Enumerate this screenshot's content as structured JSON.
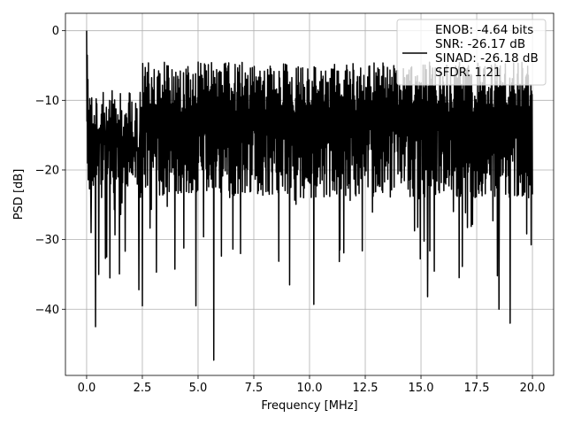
{
  "chart_data": {
    "type": "line",
    "title": "",
    "xlabel": "Frequency [MHz]",
    "ylabel": "PSD [dB]",
    "xlim": [
      -0.95,
      20.95
    ],
    "ylim": [
      -49.5,
      2.5
    ],
    "xticks": [
      0.0,
      2.5,
      5.0,
      7.5,
      10.0,
      12.5,
      15.0,
      17.5,
      20.0
    ],
    "xtick_labels": [
      "0.0",
      "2.5",
      "5.0",
      "7.5",
      "10.0",
      "12.5",
      "15.0",
      "17.5",
      "20.0"
    ],
    "yticks": [
      0,
      -10,
      -20,
      -30,
      -40
    ],
    "ytick_labels": [
      "0",
      "−10",
      "−20",
      "−30",
      "−40"
    ],
    "grid": true,
    "legend_position": "top-right",
    "line_color": "#000000",
    "grid_color": "#b0b0b0",
    "legend": [
      "ENOB: -4.64 bits",
      "SNR: -26.17 dB",
      "SINAD: -26.18 dB",
      "SFDR: 1.21"
    ],
    "series": [
      {
        "x_start": 0.0,
        "x_end": 20.0,
        "num_points": 1400,
        "peak": {
          "x": 0.0,
          "y": 0.0
        },
        "typical_range": [
          -24,
          -5
        ],
        "notable_points": [
          {
            "x": 0.0,
            "y": 0.0
          },
          {
            "x": 0.05,
            "y": -5.0
          },
          {
            "x": 0.2,
            "y": -29.0
          },
          {
            "x": 0.4,
            "y": -42.5
          },
          {
            "x": 0.55,
            "y": -35.0
          },
          {
            "x": 0.9,
            "y": -32.5
          },
          {
            "x": 1.05,
            "y": -35.5
          },
          {
            "x": 2.35,
            "y": -37.2
          },
          {
            "x": 2.5,
            "y": -39.5
          },
          {
            "x": 4.9,
            "y": -39.5
          },
          {
            "x": 5.7,
            "y": -47.3
          },
          {
            "x": 6.9,
            "y": -32.0
          },
          {
            "x": 9.1,
            "y": -36.5
          },
          {
            "x": 10.2,
            "y": -39.3
          },
          {
            "x": 15.3,
            "y": -38.2
          },
          {
            "x": 18.5,
            "y": -40.0
          },
          {
            "x": 19.0,
            "y": -42.0
          },
          {
            "x": 20.0,
            "y": -23.5
          }
        ]
      }
    ]
  }
}
